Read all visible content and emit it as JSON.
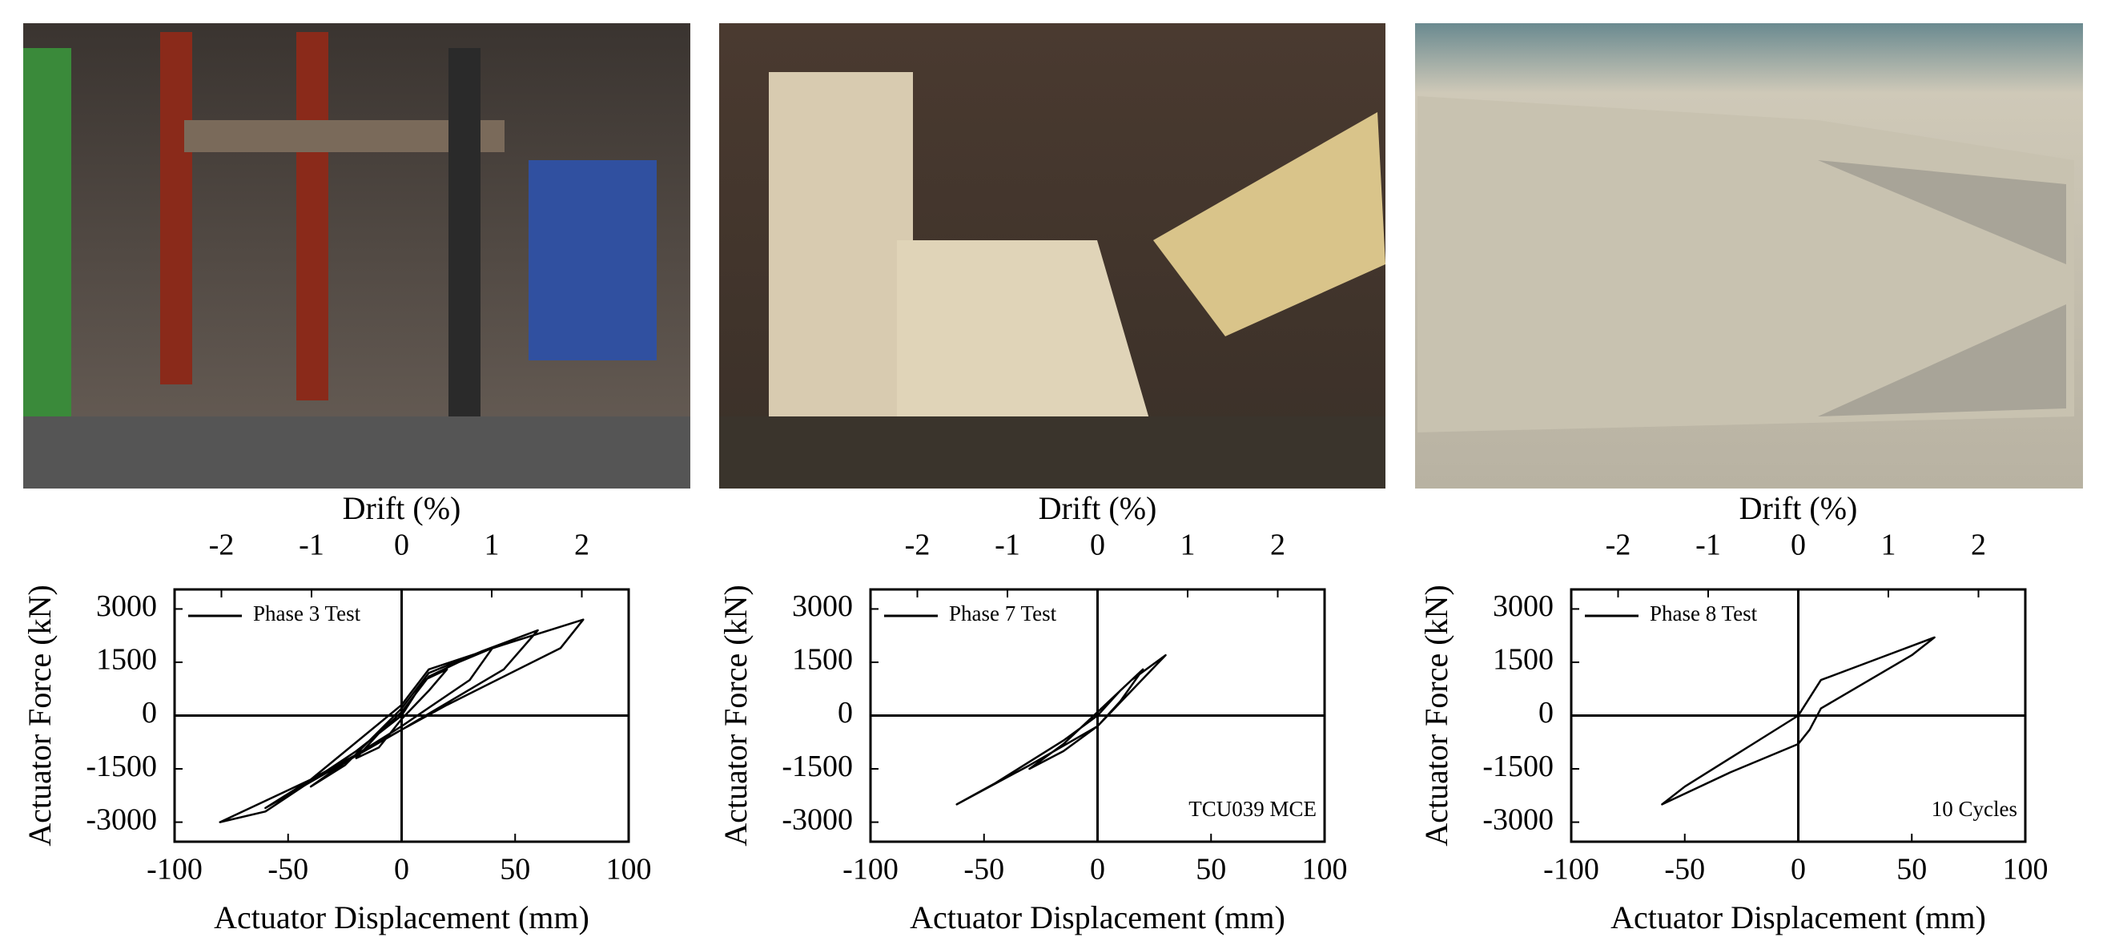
{
  "chart_data": [
    {
      "type": "line",
      "xlabel": "Actuator Displacement (mm)",
      "ylabel": "Actuator Force (kN)",
      "x2label": "Drift (%)",
      "xlim": [
        -100,
        100
      ],
      "xticks": [
        -100,
        -50,
        0,
        50,
        100
      ],
      "ylim": [
        -3550,
        3550
      ],
      "yticks": [
        -3000,
        -1500,
        0,
        1500,
        3000
      ],
      "x2lim": [
        -2.52,
        2.52
      ],
      "x2ticks": [
        -2,
        -1,
        0,
        1,
        2
      ],
      "legend": "upper left",
      "series": [
        {
          "name": "Phase 3 Test",
          "color": "#000000",
          "x": [
            0,
            10,
            20,
            12,
            0,
            -10,
            -20,
            -10,
            0,
            12,
            25,
            40,
            30,
            0,
            -20,
            -40,
            -25,
            0,
            12,
            35,
            60,
            45,
            0,
            -30,
            -60,
            -40,
            0,
            12,
            45,
            80,
            70,
            20,
            0,
            -40,
            -80,
            -60,
            -20,
            0
          ],
          "values": [
            0,
            1000,
            1300,
            700,
            -100,
            -900,
            -1200,
            -500,
            100,
            1100,
            1500,
            1900,
            1000,
            -300,
            -1100,
            -2000,
            -1400,
            200,
            1200,
            1800,
            2400,
            1300,
            -400,
            -1500,
            -2600,
            -1800,
            300,
            1300,
            2000,
            2700,
            1900,
            300,
            -400,
            -1800,
            -3000,
            -2700,
            -1000,
            0
          ]
        }
      ]
    },
    {
      "type": "line",
      "xlabel": "Actuator Displacement (mm)",
      "ylabel": "Actuator Force (kN)",
      "x2label": "Drift (%)",
      "xlim": [
        -100,
        100
      ],
      "xticks": [
        -100,
        -50,
        0,
        50,
        100
      ],
      "ylim": [
        -3550,
        3550
      ],
      "yticks": [
        -3000,
        -1500,
        0,
        1500,
        3000
      ],
      "x2lim": [
        -2.52,
        2.52
      ],
      "x2ticks": [
        -2,
        -1,
        0,
        1,
        2
      ],
      "legend": "upper left",
      "annotation": "TCU039 MCE",
      "series": [
        {
          "name": "Phase 7 Test",
          "color": "#000000",
          "x": [
            0,
            10,
            20,
            10,
            0,
            -15,
            -30,
            -15,
            0,
            15,
            30,
            15,
            0,
            -30,
            -62,
            -45,
            -15,
            0
          ],
          "values": [
            0,
            700,
            1300,
            400,
            -300,
            -1000,
            -1500,
            -800,
            100,
            1000,
            1700,
            700,
            -300,
            -1400,
            -2500,
            -1900,
            -700,
            0
          ]
        }
      ]
    },
    {
      "type": "line",
      "xlabel": "Actuator Displacement (mm)",
      "ylabel": "Actuator Force (kN)",
      "x2label": "Drift (%)",
      "xlim": [
        -100,
        100
      ],
      "xticks": [
        -100,
        -50,
        0,
        50,
        100
      ],
      "ylim": [
        -3550,
        3550
      ],
      "yticks": [
        -3000,
        -1500,
        0,
        1500,
        3000
      ],
      "x2lim": [
        -2.52,
        2.52
      ],
      "x2ticks": [
        -2,
        -1,
        0,
        1,
        2
      ],
      "legend": "upper left",
      "annotation": "10 Cycles",
      "series": [
        {
          "name": "Phase 8 Test",
          "color": "#000000",
          "x": [
            0,
            10,
            35,
            60,
            50,
            10,
            5,
            0,
            -30,
            -60,
            -50,
            -20,
            0
          ],
          "values": [
            0,
            1000,
            1600,
            2200,
            1700,
            200,
            -400,
            -800,
            -1600,
            -2500,
            -2000,
            -800,
            0
          ]
        }
      ]
    }
  ]
}
